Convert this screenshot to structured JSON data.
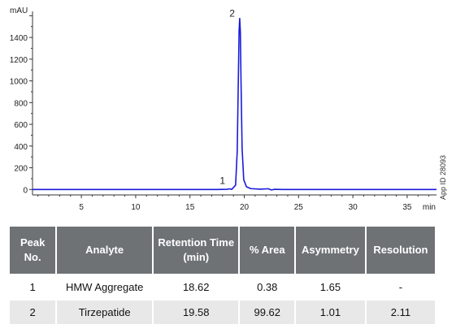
{
  "chart_data": {
    "type": "line",
    "ylabel": "mAU",
    "xlabel": "min",
    "xlim": [
      0.5,
      37.7
    ],
    "ylim": [
      -50,
      1640
    ],
    "xticks": [
      5,
      10,
      15,
      20,
      25,
      30,
      35
    ],
    "yticks": [
      0,
      200,
      400,
      600,
      800,
      1000,
      1200,
      1400
    ],
    "grid": false,
    "series": [
      {
        "color": "#1a1adc",
        "x": [
          0.5,
          5,
          10,
          15,
          17.5,
          18.4,
          18.62,
          18.85,
          19.2,
          19.35,
          19.45,
          19.52,
          19.58,
          19.64,
          19.7,
          19.8,
          19.95,
          20.2,
          20.6,
          21.5,
          22.2,
          22.5,
          22.8,
          23.5,
          25,
          30,
          35,
          37.7
        ],
        "y": [
          0,
          0,
          0,
          0,
          0,
          2,
          6,
          2,
          40,
          350,
          1000,
          1450,
          1575,
          1450,
          1000,
          380,
          90,
          25,
          8,
          3,
          7,
          -4,
          2,
          0,
          0,
          0,
          0,
          0
        ]
      }
    ],
    "annotations": [
      {
        "text": "1",
        "x": 18.62,
        "y": 6
      },
      {
        "text": "2",
        "x": 19.58,
        "y": 1575
      }
    ]
  },
  "side_label": "App ID 28093",
  "table": {
    "headers": [
      "Peak No.",
      "Analyte",
      "Retention Time\n(min)",
      "% Area",
      "Asymmetry",
      "Resolution"
    ],
    "rows": [
      [
        "1",
        "HMW Aggregate",
        "18.62",
        "0.38",
        "1.65",
        "-"
      ],
      [
        "2",
        "Tirzepatide",
        "19.58",
        "99.62",
        "1.01",
        "2.11"
      ]
    ]
  }
}
